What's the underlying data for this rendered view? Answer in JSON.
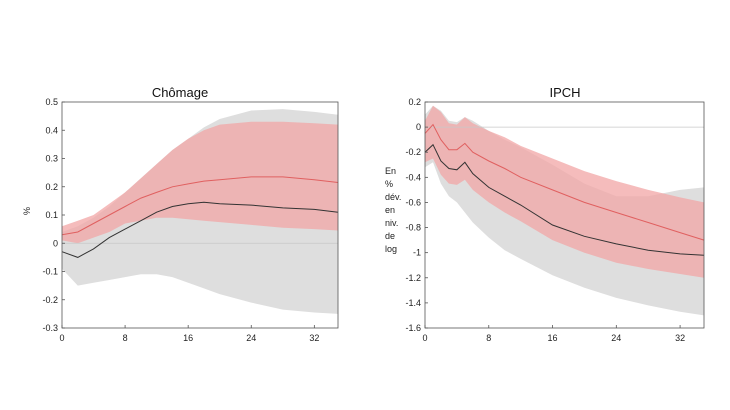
{
  "chart_data": [
    {
      "type": "line",
      "title": "Chômage",
      "xlabel": "",
      "ylabel": "%",
      "xlim": [
        0,
        35
      ],
      "ylim": [
        -0.3,
        0.5
      ],
      "xticks": [
        "0",
        "8",
        "16",
        "24",
        "32"
      ],
      "yticks": [
        "-0.3",
        "-0.2",
        "-0.1",
        "0",
        "0.1",
        "0.2",
        "0.3",
        "0.4",
        "0.5"
      ],
      "grid": false,
      "colors": {
        "grey_band": "#dedede",
        "red_band": "#f2a5a5",
        "red_line": "#e06060",
        "black_line": "#333333",
        "zero_line": "#c8c8c8"
      },
      "x": [
        0,
        2,
        4,
        6,
        8,
        10,
        12,
        14,
        16,
        18,
        20,
        24,
        28,
        32,
        35
      ],
      "series": [
        {
          "values": [
            -0.03,
            -0.05,
            -0.02,
            0.02,
            0.05,
            0.08,
            0.11,
            0.13,
            0.14,
            0.145,
            0.14,
            0.135,
            0.125,
            0.12,
            0.11
          ]
        },
        {
          "values": [
            0.03,
            0.04,
            0.07,
            0.1,
            0.13,
            0.16,
            0.18,
            0.2,
            0.21,
            0.22,
            0.225,
            0.235,
            0.235,
            0.225,
            0.215
          ]
        }
      ],
      "bands": [
        {
          "lower": [
            -0.09,
            -0.15,
            -0.14,
            -0.13,
            -0.12,
            -0.11,
            -0.11,
            -0.12,
            -0.14,
            -0.16,
            -0.18,
            -0.21,
            -0.235,
            -0.245,
            -0.25
          ],
          "upper": [
            0.04,
            0.06,
            0.09,
            0.13,
            0.18,
            0.23,
            0.28,
            0.33,
            0.37,
            0.41,
            0.44,
            0.47,
            0.475,
            0.465,
            0.455
          ]
        },
        {
          "lower": [
            0.01,
            0.0,
            0.02,
            0.04,
            0.07,
            0.08,
            0.09,
            0.09,
            0.085,
            0.08,
            0.075,
            0.065,
            0.055,
            0.05,
            0.045
          ],
          "upper": [
            0.06,
            0.08,
            0.1,
            0.14,
            0.18,
            0.23,
            0.28,
            0.33,
            0.37,
            0.4,
            0.42,
            0.43,
            0.43,
            0.425,
            0.42
          ]
        }
      ]
    },
    {
      "type": "line",
      "title": "IPCH",
      "xlabel": "",
      "ylabel": "En % dév. en niv. de log",
      "ylabel_lines": [
        "En",
        "%",
        "dév.",
        "en",
        "niv.",
        "de",
        "log"
      ],
      "xlim": [
        0,
        35
      ],
      "ylim": [
        -1.6,
        0.2
      ],
      "xticks": [
        "0",
        "8",
        "16",
        "24",
        "32"
      ],
      "yticks": [
        "-1.6",
        "-1.4",
        "-1.2",
        "-1",
        "-0.8",
        "-0.6",
        "-0.4",
        "-0.2",
        "0",
        "0.2"
      ],
      "grid": false,
      "colors": {
        "grey_band": "#dedede",
        "red_band": "#f2a5a5",
        "red_line": "#e06060",
        "black_line": "#333333",
        "zero_line": "#c8c8c8"
      },
      "x": [
        0,
        1,
        2,
        3,
        4,
        5,
        6,
        8,
        10,
        12,
        16,
        20,
        24,
        28,
        32,
        35
      ],
      "series": [
        {
          "values": [
            -0.2,
            -0.14,
            -0.27,
            -0.33,
            -0.34,
            -0.28,
            -0.37,
            -0.48,
            -0.55,
            -0.62,
            -0.78,
            -0.87,
            -0.93,
            -0.98,
            -1.01,
            -1.02
          ]
        },
        {
          "values": [
            -0.05,
            0.02,
            -0.1,
            -0.18,
            -0.18,
            -0.13,
            -0.2,
            -0.27,
            -0.33,
            -0.4,
            -0.5,
            -0.6,
            -0.68,
            -0.76,
            -0.84,
            -0.9
          ]
        }
      ],
      "bands": [
        {
          "lower": [
            -0.32,
            -0.28,
            -0.45,
            -0.55,
            -0.6,
            -0.68,
            -0.76,
            -0.88,
            -0.98,
            -1.05,
            -1.18,
            -1.28,
            -1.36,
            -1.42,
            -1.47,
            -1.5
          ],
          "upper": [
            0.1,
            0.17,
            0.13,
            0.05,
            0.04,
            0.08,
            0.05,
            -0.03,
            -0.1,
            -0.16,
            -0.3,
            -0.45,
            -0.55,
            -0.55,
            -0.5,
            -0.48
          ]
        },
        {
          "lower": [
            -0.28,
            -0.25,
            -0.38,
            -0.45,
            -0.46,
            -0.42,
            -0.5,
            -0.6,
            -0.68,
            -0.75,
            -0.9,
            -1.0,
            -1.08,
            -1.13,
            -1.17,
            -1.2
          ],
          "upper": [
            0.05,
            0.17,
            0.12,
            0.03,
            0.02,
            0.08,
            0.03,
            -0.03,
            -0.08,
            -0.15,
            -0.25,
            -0.35,
            -0.43,
            -0.5,
            -0.56,
            -0.6
          ]
        }
      ]
    }
  ]
}
